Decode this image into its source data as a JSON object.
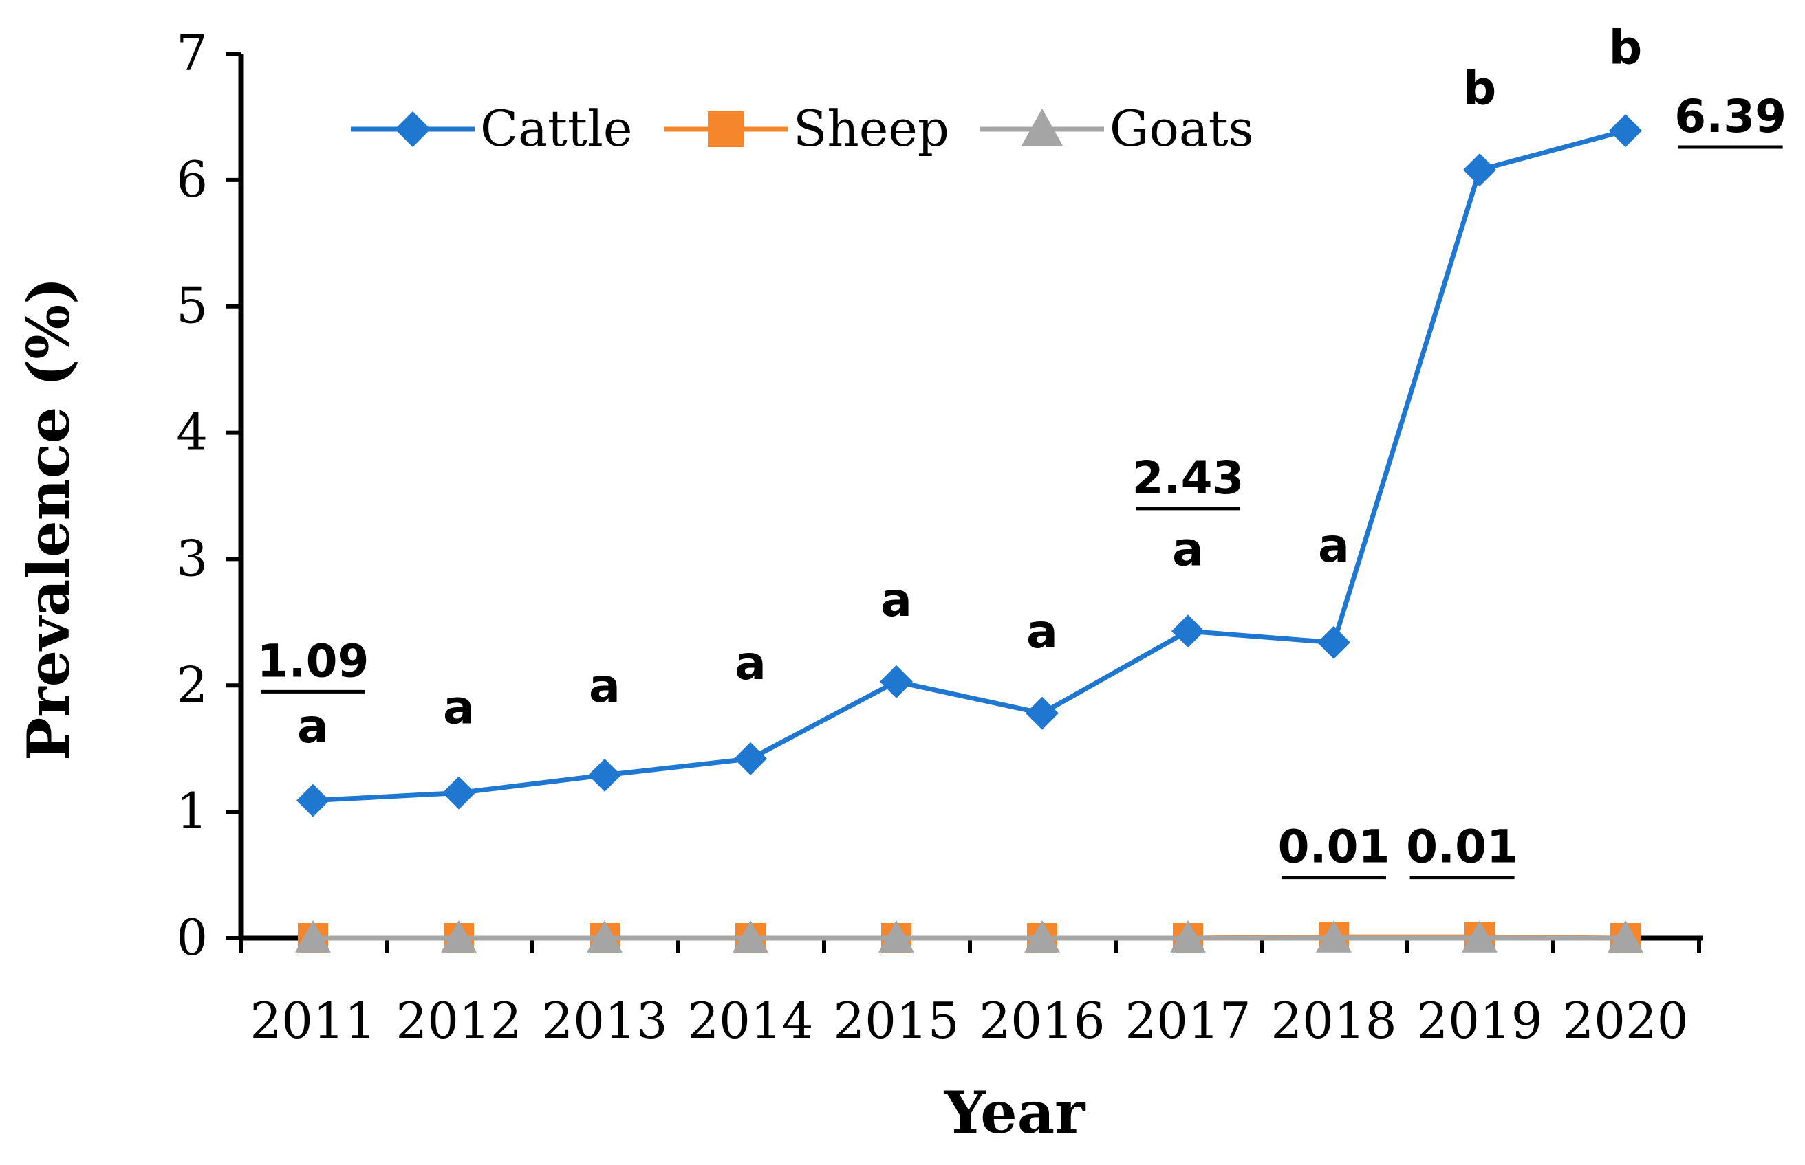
{
  "chart_data": {
    "type": "line",
    "title": "",
    "xlabel": "Year",
    "ylabel": "Prevalence (%)",
    "ylim": [
      0,
      7
    ],
    "yticks": [
      0,
      1,
      2,
      3,
      4,
      5,
      6,
      7
    ],
    "grid": false,
    "legend_position": "top",
    "categories": [
      "2011",
      "2012",
      "2013",
      "2014",
      "2015",
      "2016",
      "2017",
      "2018",
      "2019",
      "2020"
    ],
    "series": [
      {
        "name": "Cattle",
        "color": "#1F77D0",
        "marker": "diamond",
        "values": [
          1.09,
          1.15,
          1.29,
          1.42,
          2.03,
          1.78,
          2.43,
          2.34,
          6.08,
          6.39
        ]
      },
      {
        "name": "Sheep",
        "color": "#F5862B",
        "marker": "square",
        "values": [
          0,
          0,
          0,
          0,
          0,
          0,
          0,
          0.01,
          0.01,
          0
        ]
      },
      {
        "name": "Goats",
        "color": "#A5A5A5",
        "marker": "triangle",
        "values": [
          0,
          0,
          0,
          0,
          0,
          0,
          0,
          0,
          0,
          0
        ]
      }
    ],
    "significance_letters": [
      {
        "category": "2011",
        "text": "a",
        "y": 1.55
      },
      {
        "category": "2012",
        "text": "a",
        "y": 1.7
      },
      {
        "category": "2013",
        "text": "a",
        "y": 1.87
      },
      {
        "category": "2014",
        "text": "a",
        "y": 2.05
      },
      {
        "category": "2015",
        "text": "a",
        "y": 2.55
      },
      {
        "category": "2016",
        "text": "a",
        "y": 2.3
      },
      {
        "category": "2017",
        "text": "a",
        "y": 2.95
      },
      {
        "category": "2018",
        "text": "a",
        "y": 2.98
      },
      {
        "category": "2019",
        "text": "b",
        "y": 6.6
      },
      {
        "category": "2020",
        "text": "b",
        "y": 6.92
      }
    ],
    "value_annotations": [
      {
        "text": "1.09",
        "x": 0.0,
        "y": 2.07
      },
      {
        "text": "2.43",
        "x": 6.0,
        "y": 3.52
      },
      {
        "text": "6.39",
        "x": 9.72,
        "y": 6.38
      },
      {
        "text": "0.01",
        "x": 7.0,
        "y": 0.6
      },
      {
        "text": "0.01",
        "x": 7.88,
        "y": 0.6
      }
    ]
  }
}
